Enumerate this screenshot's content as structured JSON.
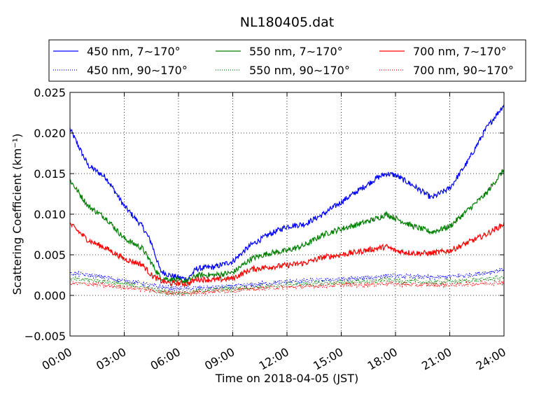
{
  "chart_data": {
    "type": "line",
    "title": "NL180405.dat",
    "xlabel": "Time on 2018-04-05 (JST)",
    "ylabel": "Scattering Coefficient (km⁻¹)",
    "x_unit": "hours",
    "xlim": [
      0,
      24
    ],
    "ylim": [
      -0.005,
      0.025
    ],
    "x_ticks": [
      0,
      3,
      6,
      9,
      12,
      15,
      18,
      21,
      24
    ],
    "x_tick_labels": [
      "00:00",
      "03:00",
      "06:00",
      "09:00",
      "12:00",
      "15:00",
      "18:00",
      "21:00",
      "24:00"
    ],
    "y_ticks": [
      -0.005,
      0.0,
      0.005,
      0.01,
      0.015,
      0.02,
      0.025
    ],
    "y_tick_labels": [
      "−0.005",
      "0.000",
      "0.005",
      "0.010",
      "0.015",
      "0.020",
      "0.025"
    ],
    "grid": true,
    "legend_position": "top",
    "x": [
      0,
      1,
      2,
      3,
      4,
      4.5,
      5,
      5.5,
      6,
      6.5,
      7,
      8,
      9,
      10,
      11,
      12,
      13,
      14,
      15,
      16,
      17,
      17.5,
      18,
      19,
      20,
      21,
      22,
      23,
      24
    ],
    "series": [
      {
        "name": "450 nm, 7∼170°",
        "color": "#0000ff",
        "style": "solid",
        "values": [
          0.0205,
          0.016,
          0.0145,
          0.011,
          0.0085,
          0.0065,
          0.003,
          0.0025,
          0.0022,
          0.002,
          0.0033,
          0.0035,
          0.0042,
          0.0062,
          0.0075,
          0.0085,
          0.0088,
          0.01,
          0.0115,
          0.013,
          0.0145,
          0.015,
          0.0148,
          0.0135,
          0.012,
          0.0132,
          0.0165,
          0.0205,
          0.0235
        ]
      },
      {
        "name": "550 nm, 7∼170°",
        "color": "#008000",
        "style": "solid",
        "values": [
          0.0142,
          0.011,
          0.0095,
          0.007,
          0.0058,
          0.004,
          0.0022,
          0.002,
          0.0018,
          0.0017,
          0.0025,
          0.0025,
          0.0028,
          0.0045,
          0.0052,
          0.0055,
          0.0062,
          0.0075,
          0.0082,
          0.0088,
          0.0095,
          0.01,
          0.0095,
          0.0085,
          0.0078,
          0.0085,
          0.0105,
          0.0125,
          0.0155
        ]
      },
      {
        "name": "700 nm, 7∼170°",
        "color": "#ff0000",
        "style": "solid",
        "values": [
          0.0088,
          0.0068,
          0.0058,
          0.0045,
          0.0038,
          0.0025,
          0.0018,
          0.0015,
          0.0015,
          0.0014,
          0.002,
          0.0019,
          0.0021,
          0.0032,
          0.0035,
          0.0037,
          0.004,
          0.0047,
          0.005,
          0.0054,
          0.0058,
          0.006,
          0.0055,
          0.0052,
          0.0052,
          0.0055,
          0.0065,
          0.0075,
          0.0088
        ]
      },
      {
        "name": "450 nm, 90∼170°",
        "color": "#0000ff",
        "style": "dotted",
        "values": [
          0.0027,
          0.0025,
          0.0022,
          0.0018,
          0.0015,
          0.0012,
          0.001,
          0.0009,
          0.0008,
          0.0008,
          0.0009,
          0.001,
          0.0011,
          0.0013,
          0.0015,
          0.0017,
          0.0018,
          0.0019,
          0.002,
          0.0021,
          0.0023,
          0.0024,
          0.0024,
          0.0023,
          0.0022,
          0.0023,
          0.0025,
          0.0028,
          0.0032
        ]
      },
      {
        "name": "550 nm, 90∼170°",
        "color": "#008000",
        "style": "dotted",
        "values": [
          0.002,
          0.0019,
          0.0017,
          0.0014,
          0.0011,
          0.0008,
          0.0005,
          0.0004,
          0.0003,
          0.0003,
          0.0005,
          0.0007,
          0.0008,
          0.001,
          0.0011,
          0.0013,
          0.0014,
          0.0015,
          0.0016,
          0.0017,
          0.0018,
          0.0019,
          0.0018,
          0.0017,
          0.0016,
          0.0017,
          0.0018,
          0.002,
          0.0022
        ]
      },
      {
        "name": "700 nm, 90∼170°",
        "color": "#ff0000",
        "style": "dotted",
        "values": [
          0.0015,
          0.0014,
          0.0012,
          0.001,
          0.0008,
          0.0006,
          0.0004,
          0.0003,
          0.0003,
          0.0003,
          0.0004,
          0.0005,
          0.0006,
          0.0008,
          0.0009,
          0.001,
          0.0011,
          0.0012,
          0.0013,
          0.0013,
          0.0014,
          0.0015,
          0.0014,
          0.0013,
          0.0013,
          0.0013,
          0.0014,
          0.0015,
          0.0016
        ]
      }
    ],
    "legend_order": [
      0,
      3,
      1,
      4,
      2,
      5
    ]
  }
}
